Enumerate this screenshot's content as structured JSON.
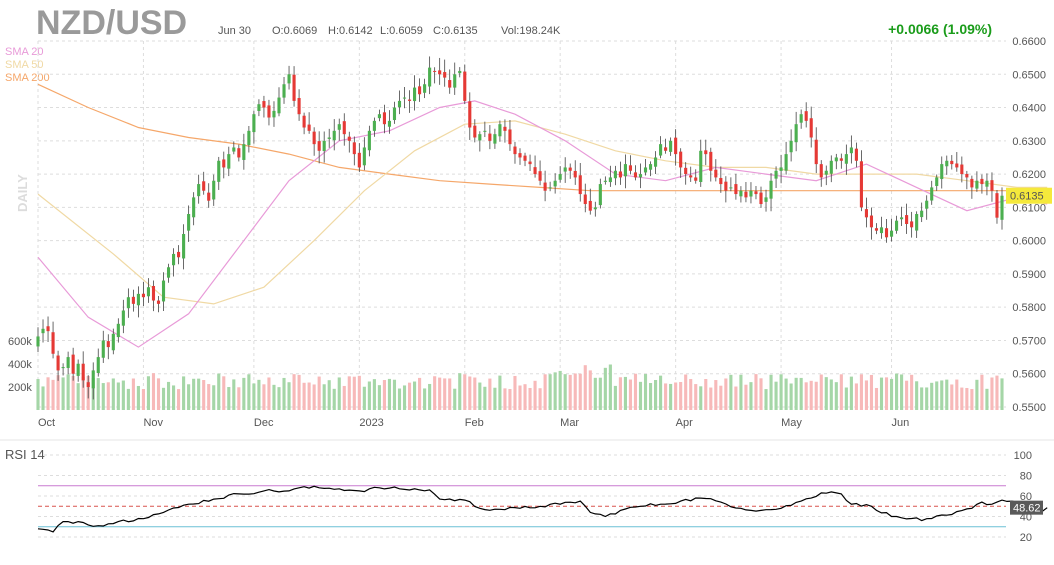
{
  "header": {
    "symbol": "NZD/USD",
    "date": "Jun 30",
    "open": "O:0.6069",
    "high": "H:0.6142",
    "low": "L:0.6059",
    "close": "C:0.6135",
    "volume": "Vol:198.24K",
    "change": "+0.0066 (1.09%)",
    "timeframe": "DAILY"
  },
  "colors": {
    "up": "#4caf50",
    "down": "#e53935",
    "vol_up": "#a5d6a7",
    "vol_down": "#f7b9b9",
    "sma20": "#e89ad8",
    "sma50": "#f0d9a4",
    "sma200": "#f5a76a",
    "rsi_line": "#000000",
    "rsi_upper": "#c97ad0",
    "rsi_lower": "#6cc0d6",
    "rsi_mid": "#d9534f",
    "price_tag": "#f5e93b",
    "change_color": "#1a9c1a"
  },
  "chart_data": [
    {
      "type": "candlestick",
      "title": "NZD/USD",
      "last_price_label": "0.6135",
      "ylim": [
        0.55,
        0.66
      ],
      "y_ticks": [
        "0.6600",
        "0.6500",
        "0.6400",
        "0.6300",
        "0.6200",
        "0.6100",
        "0.6000",
        "0.5900",
        "0.5800",
        "0.5700",
        "0.5600",
        "0.5500"
      ],
      "x_labels": [
        "Oct",
        "Nov",
        "Dec",
        "2023",
        "Feb",
        "Mar",
        "Apr",
        "May",
        "Jun"
      ],
      "x_label_index": [
        0,
        21,
        43,
        64,
        85,
        104,
        127,
        148,
        170
      ],
      "legend": [
        {
          "name": "SMA 20",
          "key": "sma20"
        },
        {
          "name": "SMA 50",
          "key": "sma50"
        },
        {
          "name": "SMA 200",
          "key": "sma200"
        }
      ],
      "closes": [
        0.5712,
        0.5735,
        0.5728,
        0.566,
        0.561,
        0.562,
        0.565,
        0.56,
        0.563,
        0.558,
        0.556,
        0.561,
        0.565,
        0.57,
        0.568,
        0.572,
        0.575,
        0.579,
        0.583,
        0.581,
        0.584,
        0.583,
        0.586,
        0.582,
        0.581,
        0.588,
        0.592,
        0.596,
        0.595,
        0.602,
        0.608,
        0.613,
        0.617,
        0.615,
        0.612,
        0.618,
        0.624,
        0.622,
        0.626,
        0.628,
        0.625,
        0.629,
        0.633,
        0.638,
        0.641,
        0.64,
        0.637,
        0.639,
        0.643,
        0.647,
        0.65,
        0.642,
        0.638,
        0.634,
        0.633,
        0.629,
        0.627,
        0.63,
        0.631,
        0.633,
        0.635,
        0.632,
        0.63,
        0.626,
        0.622,
        0.628,
        0.633,
        0.636,
        0.638,
        0.635,
        0.636,
        0.64,
        0.642,
        0.643,
        0.642,
        0.646,
        0.644,
        0.647,
        0.652,
        0.651,
        0.65,
        0.649,
        0.646,
        0.65,
        0.651,
        0.642,
        0.634,
        0.631,
        0.632,
        0.633,
        0.63,
        0.632,
        0.635,
        0.633,
        0.629,
        0.626,
        0.625,
        0.624,
        0.623,
        0.62,
        0.618,
        0.615,
        0.616,
        0.618,
        0.62,
        0.622,
        0.621,
        0.619,
        0.614,
        0.611,
        0.609,
        0.61,
        0.617,
        0.618,
        0.619,
        0.621,
        0.619,
        0.623,
        0.621,
        0.619,
        0.62,
        0.622,
        0.623,
        0.625,
        0.629,
        0.627,
        0.63,
        0.626,
        0.622,
        0.62,
        0.619,
        0.618,
        0.627,
        0.626,
        0.621,
        0.619,
        0.617,
        0.615,
        0.616,
        0.614,
        0.615,
        0.613,
        0.615,
        0.614,
        0.611,
        0.613,
        0.618,
        0.621,
        0.622,
        0.626,
        0.63,
        0.635,
        0.638,
        0.636,
        0.631,
        0.623,
        0.619,
        0.621,
        0.624,
        0.625,
        0.624,
        0.626,
        0.628,
        0.624,
        0.61,
        0.607,
        0.604,
        0.603,
        0.604,
        0.601,
        0.603,
        0.606,
        0.607,
        0.605,
        0.604,
        0.608,
        0.609,
        0.612,
        0.616,
        0.619,
        0.623,
        0.624,
        0.623,
        0.622,
        0.62,
        0.619,
        0.616,
        0.618,
        0.617,
        0.618,
        0.615,
        0.6069,
        0.6135
      ],
      "sma20": [
        [
          0,
          0.595
        ],
        [
          10,
          0.577
        ],
        [
          20,
          0.568
        ],
        [
          30,
          0.578
        ],
        [
          40,
          0.598
        ],
        [
          50,
          0.618
        ],
        [
          60,
          0.63
        ],
        [
          70,
          0.633
        ],
        [
          80,
          0.64
        ],
        [
          87,
          0.642
        ],
        [
          95,
          0.638
        ],
        [
          105,
          0.63
        ],
        [
          115,
          0.62
        ],
        [
          125,
          0.618
        ],
        [
          135,
          0.622
        ],
        [
          145,
          0.62
        ],
        [
          155,
          0.618
        ],
        [
          165,
          0.623
        ],
        [
          175,
          0.616
        ],
        [
          185,
          0.609
        ],
        [
          195,
          0.613
        ],
        [
          201,
          0.611
        ]
      ],
      "sma50": [
        [
          0,
          0.614
        ],
        [
          15,
          0.596
        ],
        [
          25,
          0.583
        ],
        [
          35,
          0.581
        ],
        [
          45,
          0.586
        ],
        [
          55,
          0.6
        ],
        [
          65,
          0.615
        ],
        [
          75,
          0.627
        ],
        [
          85,
          0.635
        ],
        [
          95,
          0.636
        ],
        [
          105,
          0.632
        ],
        [
          115,
          0.627
        ],
        [
          125,
          0.624
        ],
        [
          135,
          0.622
        ],
        [
          145,
          0.622
        ],
        [
          155,
          0.62
        ],
        [
          165,
          0.62
        ],
        [
          175,
          0.62
        ],
        [
          185,
          0.618
        ],
        [
          195,
          0.616
        ],
        [
          201,
          0.616
        ]
      ],
      "sma200": [
        [
          0,
          0.647
        ],
        [
          10,
          0.64
        ],
        [
          20,
          0.634
        ],
        [
          30,
          0.631
        ],
        [
          40,
          0.629
        ],
        [
          50,
          0.626
        ],
        [
          60,
          0.622
        ],
        [
          70,
          0.62
        ],
        [
          80,
          0.618
        ],
        [
          90,
          0.617
        ],
        [
          100,
          0.616
        ],
        [
          110,
          0.615
        ],
        [
          120,
          0.615
        ],
        [
          130,
          0.615
        ],
        [
          140,
          0.615
        ],
        [
          150,
          0.615
        ],
        [
          160,
          0.615
        ],
        [
          170,
          0.615
        ],
        [
          180,
          0.615
        ],
        [
          190,
          0.615
        ],
        [
          201,
          0.615
        ]
      ],
      "volume": {
        "y_ticks": [
          "600k",
          "400k",
          "200k"
        ],
        "y_values": [
          600000,
          400000,
          200000
        ],
        "ylim": [
          0,
          780000
        ]
      }
    },
    {
      "type": "line",
      "title": "RSI 14",
      "last_value_label": "48.62",
      "ylim": [
        20,
        100
      ],
      "y_ticks": [
        "100",
        "80",
        "60",
        "40",
        "20"
      ],
      "levels": {
        "upper": 70,
        "mid": 50,
        "lower": 30
      },
      "values": [
        [
          0,
          28
        ],
        [
          3,
          25
        ],
        [
          5,
          35
        ],
        [
          8,
          35
        ],
        [
          12,
          31
        ],
        [
          16,
          35
        ],
        [
          20,
          38
        ],
        [
          25,
          44
        ],
        [
          30,
          52
        ],
        [
          35,
          57
        ],
        [
          40,
          62
        ],
        [
          45,
          65
        ],
        [
          50,
          65
        ],
        [
          52,
          68
        ],
        [
          56,
          68
        ],
        [
          60,
          67
        ],
        [
          64,
          65
        ],
        [
          68,
          68
        ],
        [
          72,
          67
        ],
        [
          76,
          66
        ],
        [
          78,
          66
        ],
        [
          80,
          57
        ],
        [
          85,
          56
        ],
        [
          88,
          48
        ],
        [
          92,
          47
        ],
        [
          96,
          48
        ],
        [
          100,
          50
        ],
        [
          104,
          52
        ],
        [
          108,
          55
        ],
        [
          110,
          44
        ],
        [
          113,
          40
        ],
        [
          116,
          46
        ],
        [
          120,
          50
        ],
        [
          124,
          52
        ],
        [
          128,
          55
        ],
        [
          132,
          58
        ],
        [
          136,
          54
        ],
        [
          140,
          48
        ],
        [
          144,
          46
        ],
        [
          148,
          48
        ],
        [
          152,
          55
        ],
        [
          156,
          63
        ],
        [
          158,
          64
        ],
        [
          160,
          62
        ],
        [
          162,
          52
        ],
        [
          166,
          50
        ],
        [
          170,
          40
        ],
        [
          174,
          38
        ],
        [
          176,
          36
        ],
        [
          178,
          38
        ],
        [
          182,
          42
        ],
        [
          186,
          48
        ],
        [
          188,
          54
        ],
        [
          190,
          52
        ],
        [
          192,
          56
        ],
        [
          194,
          55
        ],
        [
          196,
          52
        ],
        [
          198,
          50
        ],
        [
          200,
          45
        ],
        [
          201,
          48.62
        ]
      ]
    }
  ]
}
